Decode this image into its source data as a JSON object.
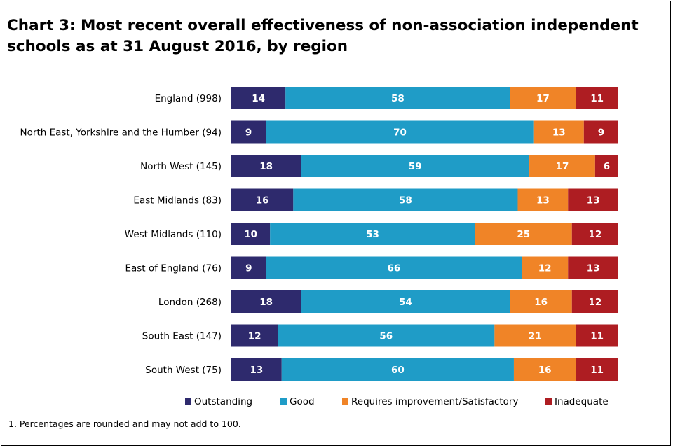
{
  "chart_data": {
    "type": "bar",
    "orientation": "horizontal",
    "stacked": true,
    "title": "Chart 3: Most recent overall effectiveness of non-association independent schools as at 31 August 2016, by region",
    "xlabel": "",
    "ylabel": "",
    "xlim": [
      0,
      100
    ],
    "grid": false,
    "legend_position": "bottom",
    "categories": [
      "England (998)",
      "North East, Yorkshire and the Humber (94)",
      "North West (145)",
      "East Midlands (83)",
      "West Midlands (110)",
      "East of England (76)",
      "London (268)",
      "South East (147)",
      "South West (75)"
    ],
    "series": [
      {
        "name": "Outstanding",
        "color": "#2e2a6d",
        "values": [
          14,
          9,
          18,
          16,
          10,
          9,
          18,
          12,
          13
        ]
      },
      {
        "name": "Good",
        "color": "#1f9cc7",
        "values": [
          58,
          70,
          59,
          58,
          53,
          66,
          54,
          56,
          60
        ]
      },
      {
        "name": "Requires improvement/Satisfactory",
        "color": "#f08427",
        "values": [
          17,
          13,
          17,
          13,
          25,
          12,
          16,
          21,
          16
        ]
      },
      {
        "name": "Inadequate",
        "color": "#ae1d22",
        "values": [
          11,
          9,
          6,
          13,
          12,
          13,
          12,
          11,
          11
        ]
      }
    ]
  },
  "footnote": "1. Percentages are rounded and may not add to 100."
}
